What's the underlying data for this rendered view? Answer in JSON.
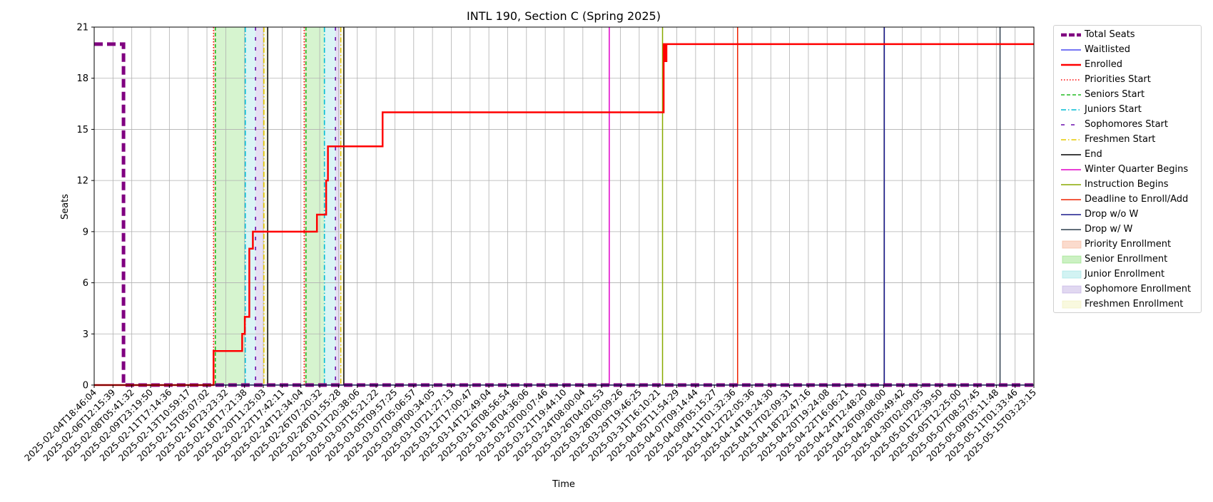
{
  "chart_data": {
    "type": "line",
    "title": "INTL 190, Section C (Spring 2025)",
    "xlabel": "Time",
    "ylabel": "Seats",
    "ylim": [
      0,
      21
    ],
    "yticks": [
      0,
      3,
      6,
      9,
      12,
      15,
      18,
      21
    ],
    "grid": true,
    "legend_position": "outside-right",
    "xlim": [
      "2025-02-04T18:46:04",
      "2025-05-15T03:23:15"
    ],
    "xticks": [
      "2025-02-04T18:46:04",
      "2025-02-06T12:15:39",
      "2025-02-08T05:41:32",
      "2025-02-09T23:19:50",
      "2025-02-11T17:14:36",
      "2025-02-13T10:59:17",
      "2025-02-15T05:07:02",
      "2025-02-16T23:23:32",
      "2025-02-18T17:21:38",
      "2025-02-20T11:25:03",
      "2025-02-22T17:42:11",
      "2025-02-24T12:34:04",
      "2025-02-26T07:20:32",
      "2025-02-28T01:55:28",
      "2025-03-01T20:38:06",
      "2025-03-03T15:21:22",
      "2025-03-05T09:57:25",
      "2025-03-07T05:06:57",
      "2025-03-09T00:34:05",
      "2025-03-10T21:27:13",
      "2025-03-12T17:00:47",
      "2025-03-14T12:49:04",
      "2025-03-16T08:56:54",
      "2025-03-18T04:36:06",
      "2025-03-20T00:07:46",
      "2025-03-21T19:44:10",
      "2025-03-24T08:00:04",
      "2025-03-26T04:02:53",
      "2025-03-28T00:09:26",
      "2025-03-29T19:46:25",
      "2025-03-31T16:10:21",
      "2025-04-05T11:54:29",
      "2025-04-07T09:14:44",
      "2025-04-09T05:15:27",
      "2025-04-11T01:32:36",
      "2025-04-12T22:05:36",
      "2025-04-14T18:24:30",
      "2025-04-17T02:09:31",
      "2025-04-18T22:47:16",
      "2025-04-20T19:24:08",
      "2025-04-22T16:06:21",
      "2025-04-24T12:48:20",
      "2025-04-26T09:08:00",
      "2025-04-28T05:49:42",
      "2025-04-30T02:09:05",
      "2025-05-01T22:39:50",
      "2025-05-05T12:25:00",
      "2025-05-07T08:57:45",
      "2025-05-09T05:11:48",
      "2025-05-11T01:33:46",
      "2025-05-15T03:23:15"
    ],
    "series": [
      {
        "name": "Total Seats",
        "color": "#800080",
        "style": "dashed-thick",
        "x": [
          "2025-02-04T18:46:04",
          "2025-02-07T11:30:00",
          "2025-02-07T11:30:00",
          "2025-05-15T03:23:15"
        ],
        "y": [
          20,
          20,
          0,
          0
        ]
      },
      {
        "name": "Waitlisted",
        "color": "#4a4af0",
        "style": "solid",
        "x": [
          "2025-02-04T18:46:04",
          "2025-05-15T03:23:15"
        ],
        "y": [
          0,
          0
        ]
      },
      {
        "name": "Enrolled",
        "color": "#ff0000",
        "style": "solid-thick",
        "x": [
          "2025-02-04T18:46:04",
          "2025-02-15T20:00:00",
          "2025-02-15T20:00:00",
          "2025-02-18T12:00:00",
          "2025-02-18T12:00:00",
          "2025-02-18T18:00:00",
          "2025-02-18T18:00:00",
          "2025-02-19T04:00:00",
          "2025-02-19T04:00:00",
          "2025-02-19T12:00:00",
          "2025-02-19T12:00:00",
          "2025-02-26T01:00:00",
          "2025-02-26T01:00:00",
          "2025-02-26T22:00:00",
          "2025-02-26T22:00:00",
          "2025-02-27T02:00:00",
          "2025-02-27T02:00:00",
          "2025-03-04T06:00:00",
          "2025-03-04T06:00:00",
          "2025-04-02T03:00:00",
          "2025-04-02T03:00:00",
          "2025-04-02T10:00:00",
          "2025-04-02T10:00:00",
          "2025-04-02T20:00:00",
          "2025-04-02T20:00:00",
          "2025-05-15T03:23:15"
        ],
        "y": [
          0,
          0,
          2,
          2,
          3,
          3,
          4,
          4,
          8,
          8,
          9,
          9,
          10,
          10,
          12,
          12,
          14,
          14,
          16,
          16,
          20,
          20,
          19,
          19,
          20,
          20
        ]
      }
    ],
    "enrollment_periods": [
      {
        "name": "Priority Enrollment",
        "color": "#f4a582",
        "start": "2025-02-15T20:00:00",
        "end": "2025-02-16T00:00:00"
      },
      {
        "name": "Senior Enrollment",
        "color": "#7fdc6a",
        "start": "2025-02-16T00:00:00",
        "end": "2025-02-18T19:00:00"
      },
      {
        "name": "Junior Enrollment",
        "color": "#8ee0e0",
        "start": "2025-02-18T19:00:00",
        "end": "2025-02-19T18:00:00"
      },
      {
        "name": "Sophomore Enrollment",
        "color": "#b39ddb",
        "start": "2025-02-19T18:00:00",
        "end": "2025-02-20T13:00:00"
      },
      {
        "name": "Freshmen Enrollment",
        "color": "#f0f0b0",
        "start": "2025-02-20T13:00:00",
        "end": "2025-02-21T00:00:00"
      },
      {
        "name": "Priority Enrollment",
        "color": "#f4a582",
        "start": "2025-02-24T20:00:00",
        "end": "2025-02-25T00:00:00"
      },
      {
        "name": "Senior Enrollment",
        "color": "#7fdc6a",
        "start": "2025-02-25T00:00:00",
        "end": "2025-02-26T18:00:00"
      },
      {
        "name": "Junior Enrollment",
        "color": "#8ee0e0",
        "start": "2025-02-26T18:00:00",
        "end": "2025-02-27T19:00:00"
      },
      {
        "name": "Sophomore Enrollment",
        "color": "#b39ddb",
        "start": "2025-02-27T19:00:00",
        "end": "2025-02-28T07:00:00"
      },
      {
        "name": "Freshmen Enrollment",
        "color": "#f0f0b0",
        "start": "2025-02-28T07:00:00",
        "end": "2025-02-28T14:00:00"
      }
    ],
    "event_lines": [
      {
        "name": "Priorities Start",
        "color": "#ff0000",
        "style": "dotted",
        "dates": [
          "2025-02-15T20:00:00",
          "2025-02-24T20:00:00"
        ]
      },
      {
        "name": "Seniors Start",
        "color": "#22bb22",
        "style": "dashed",
        "dates": [
          "2025-02-16T00:00:00",
          "2025-02-25T00:00:00"
        ]
      },
      {
        "name": "Juniors Start",
        "color": "#00bcd4",
        "style": "dashdot",
        "dates": [
          "2025-02-18T19:00:00",
          "2025-02-26T18:00:00"
        ]
      },
      {
        "name": "Sophomores Start",
        "color": "#6a0dad",
        "style": "loose-dash",
        "dates": [
          "2025-02-19T18:00:00",
          "2025-02-27T19:00:00"
        ]
      },
      {
        "name": "Freshmen Start",
        "color": "#e6c800",
        "style": "dashdot",
        "dates": [
          "2025-02-20T13:00:00",
          "2025-02-28T07:00:00"
        ]
      },
      {
        "name": "End",
        "color": "#000000",
        "style": "solid",
        "dates": [
          "2025-02-21T00:00:00",
          "2025-02-28T14:00:00"
        ]
      },
      {
        "name": "Winter Quarter Begins",
        "color": "#e000c8",
        "style": "solid",
        "dates": [
          "2025-03-26T22:00:00"
        ]
      },
      {
        "name": "Instruction Begins",
        "color": "#88aa00",
        "style": "solid",
        "dates": [
          "2025-04-01T20:00:00"
        ]
      },
      {
        "name": "Deadline to Enroll/Add",
        "color": "#ee2200",
        "style": "solid",
        "dates": [
          "2025-04-11T12:00:00"
        ]
      },
      {
        "name": "Drop w/o W",
        "color": "#1a1a8c",
        "style": "solid",
        "dates": [
          "2025-04-26T11:00:00"
        ]
      },
      {
        "name": "Drop w/ W",
        "color": "#2f3f4f",
        "style": "solid",
        "dates": [
          "2025-05-09T14:00:00"
        ]
      }
    ],
    "legend": [
      {
        "label": "Total Seats",
        "kind": "line",
        "color": "#800080",
        "style": "dashed-thick"
      },
      {
        "label": "Waitlisted",
        "kind": "line",
        "color": "#4a4af0",
        "style": "solid"
      },
      {
        "label": "Enrolled",
        "kind": "line",
        "color": "#ff0000",
        "style": "solid-thick"
      },
      {
        "label": "Priorities Start",
        "kind": "line",
        "color": "#ff0000",
        "style": "dotted"
      },
      {
        "label": "Seniors Start",
        "kind": "line",
        "color": "#22bb22",
        "style": "dashed"
      },
      {
        "label": "Juniors Start",
        "kind": "line",
        "color": "#00bcd4",
        "style": "dashdot"
      },
      {
        "label": "Sophomores Start",
        "kind": "line",
        "color": "#6a0dad",
        "style": "loose-dash"
      },
      {
        "label": "Freshmen Start",
        "kind": "line",
        "color": "#e6c800",
        "style": "dashdot"
      },
      {
        "label": "End",
        "kind": "line",
        "color": "#000000",
        "style": "solid"
      },
      {
        "label": "Winter Quarter Begins",
        "kind": "line",
        "color": "#e000c8",
        "style": "solid"
      },
      {
        "label": "Instruction Begins",
        "kind": "line",
        "color": "#88aa00",
        "style": "solid"
      },
      {
        "label": "Deadline to Enroll/Add",
        "kind": "line",
        "color": "#ee2200",
        "style": "solid"
      },
      {
        "label": "Drop w/o W",
        "kind": "line",
        "color": "#1a1a8c",
        "style": "solid"
      },
      {
        "label": "Drop w/ W",
        "kind": "line",
        "color": "#2f3f4f",
        "style": "solid"
      },
      {
        "label": "Priority Enrollment",
        "kind": "patch",
        "color": "#f4a582"
      },
      {
        "label": "Senior Enrollment",
        "kind": "patch",
        "color": "#7fdc6a"
      },
      {
        "label": "Junior Enrollment",
        "kind": "patch",
        "color": "#8ee0e0"
      },
      {
        "label": "Sophomore Enrollment",
        "kind": "patch",
        "color": "#b39ddb"
      },
      {
        "label": "Freshmen Enrollment",
        "kind": "patch",
        "color": "#f0f0b0"
      }
    ]
  }
}
